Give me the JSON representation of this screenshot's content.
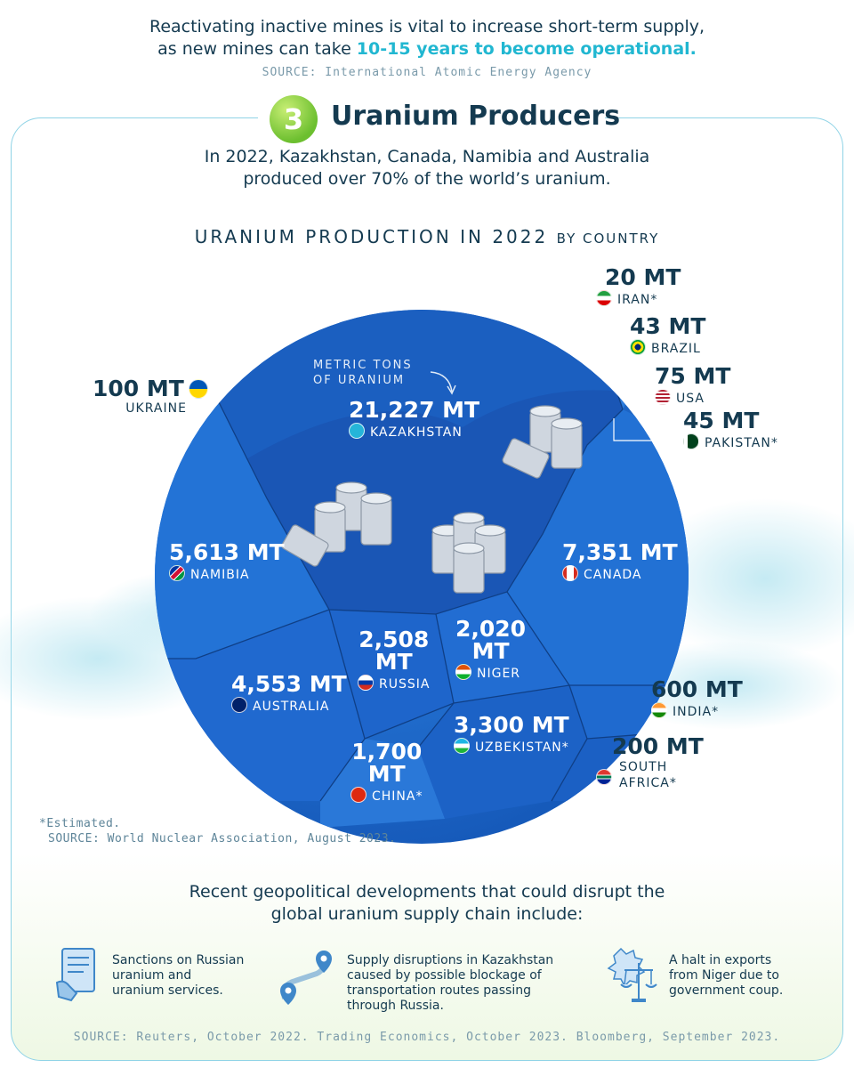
{
  "intro": {
    "line1": "Reactivating inactive mines is vital to increase short-term supply,",
    "line2_start": "as new mines can take ",
    "line2_highlight": "10-15 years to become operational.",
    "source": "SOURCE: International Atomic Energy Agency"
  },
  "section": {
    "number": "3",
    "title": "Uranium Producers",
    "lead_line1": "In 2022, Kazakhstan, Canada, Namibia and Australia",
    "lead_line2": "produced over 70% of the world’s uranium."
  },
  "chart_data": {
    "type": "voronoi-treemap",
    "title": "URANIUM PRODUCTION IN 2022",
    "subtitle": "BY COUNTRY",
    "unit_annotation_line1": "METRIC TONS",
    "unit_annotation_line2": "OF URANIUM",
    "unit": "MT",
    "series": [
      {
        "country": "KAZAKHSTAN",
        "value": 21227,
        "label": "21,227 MT",
        "flag": "kz"
      },
      {
        "country": "CANADA",
        "value": 7351,
        "label": "7,351 MT",
        "flag": "ca"
      },
      {
        "country": "NAMIBIA",
        "value": 5613,
        "label": "5,613 MT",
        "flag": "na"
      },
      {
        "country": "AUSTRALIA",
        "value": 4553,
        "label": "4,553 MT",
        "flag": "au"
      },
      {
        "country": "UZBEKISTAN*",
        "value": 3300,
        "label": "3,300 MT",
        "flag": "uz"
      },
      {
        "country": "RUSSIA",
        "value": 2508,
        "label_a": "2,508",
        "label_b": "MT",
        "flag": "ru"
      },
      {
        "country": "NIGER",
        "value": 2020,
        "label_a": "2,020",
        "label_b": "MT",
        "flag": "ne"
      },
      {
        "country": "CHINA*",
        "value": 1700,
        "label_a": "1,700",
        "label_b": "MT",
        "flag": "cn"
      },
      {
        "country": "INDIA*",
        "value": 600,
        "label": "600 MT",
        "flag": "in"
      },
      {
        "country": "SOUTH AFRICA*",
        "value": 200,
        "label": "200 MT",
        "country_a": "SOUTH",
        "country_b": "AFRICA*",
        "flag": "za"
      },
      {
        "country": "UKRAINE",
        "value": 100,
        "label": "100 MT",
        "flag": "ua"
      },
      {
        "country": "USA",
        "value": 75,
        "label": "75 MT",
        "flag": "us"
      },
      {
        "country": "PAKISTAN*",
        "value": 45,
        "label": "45 MT",
        "flag": "pk"
      },
      {
        "country": "BRAZIL",
        "value": 43,
        "label": "43 MT",
        "flag": "br"
      },
      {
        "country": "IRAN*",
        "value": 20,
        "label": "20 MT",
        "flag": "ir"
      }
    ],
    "footnote": "*Estimated.",
    "source": "SOURCE: World Nuclear Association, August 2023."
  },
  "disruptions": {
    "heading_line1": "Recent geopolitical developments that could disrupt the",
    "heading_line2": "global uranium supply chain include:",
    "items": [
      {
        "icon": "sanctions-document-icon",
        "line1": "Sanctions on Russian",
        "line2": "uranium and",
        "line3": "uranium services."
      },
      {
        "icon": "route-map-pin-icon",
        "line1": "Supply disruptions in Kazakhstan",
        "line2": "caused by possible blockage of",
        "line3": "transportation routes passing",
        "line4": "through Russia."
      },
      {
        "icon": "scales-of-justice-icon",
        "line1": "A halt in exports",
        "line2": "from Niger due to",
        "line3": "government coup."
      }
    ],
    "source": "SOURCE: Reuters, October 2022. Trading Economics, October 2023. Bloomberg, September 2023."
  },
  "colors": {
    "circle": "#1e6fd0",
    "kazakhstan": "#1a62c4",
    "accent": "#21b7d1",
    "text": "#143a50"
  }
}
